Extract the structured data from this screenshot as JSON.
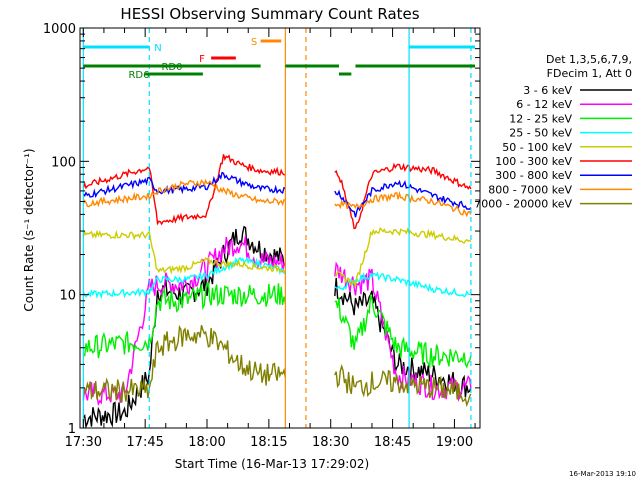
{
  "chart_data": {
    "type": "line",
    "title": "HESSI Observing Summary Count Rates",
    "xlabel": "Start Time (16-Mar-13 17:29:02)",
    "ylabel": "Count Rate (s⁻¹ detector⁻¹)",
    "y_scale": "log",
    "ylim": [
      1,
      1000
    ],
    "xlim": [
      "17:30",
      "19:05"
    ],
    "x_ticks": [
      "17:30",
      "17:45",
      "18:00",
      "18:15",
      "18:30",
      "18:45",
      "19:00"
    ],
    "y_ticks": [
      "1",
      "10",
      "100",
      "1000"
    ],
    "grid": false,
    "legend_position": "right",
    "legend_header": [
      "Det 1,3,5,6,7,9,",
      "FDecim 1, Att 0"
    ],
    "footer_date": "16-Mar-2013 19:10",
    "gap": [
      "18:19",
      "18:31"
    ],
    "series": [
      {
        "name": "3 - 6 keV",
        "color": "#000000",
        "x": [
          "17:30",
          "17:40",
          "17:46",
          "17:48",
          "17:55",
          "18:00",
          "18:04",
          "18:08",
          "18:13",
          "18:29",
          "18:32",
          "18:36",
          "18:40",
          "18:46",
          "18:55",
          "19:04"
        ],
        "y": [
          1.2,
          1.3,
          2.5,
          11,
          10,
          12,
          20,
          30,
          22,
          13,
          11,
          8,
          9,
          3,
          2.5,
          2
        ]
      },
      {
        "name": "6 - 12 keV",
        "color": "#ff00ff",
        "x": [
          "17:30",
          "17:40",
          "17:46",
          "17:48",
          "17:55",
          "18:00",
          "18:04",
          "18:08",
          "18:13",
          "18:29",
          "18:32",
          "18:36",
          "18:40",
          "18:46",
          "18:55",
          "19:04"
        ],
        "y": [
          1.8,
          1.8,
          11,
          12,
          12,
          16,
          22,
          25,
          18,
          16,
          15,
          12,
          13,
          2.5,
          2,
          2
        ]
      },
      {
        "name": "12 - 25 keV",
        "color": "#00ee00",
        "x": [
          "17:30",
          "17:46",
          "17:48",
          "17:55",
          "18:00",
          "18:04",
          "18:08",
          "18:13",
          "18:29",
          "18:32",
          "18:36",
          "18:40",
          "18:46",
          "18:55",
          "19:04"
        ],
        "y": [
          4,
          4.5,
          9,
          9,
          10,
          10,
          10,
          10,
          10,
          8,
          4,
          9,
          4,
          3.5,
          3.5
        ]
      },
      {
        "name": "25 - 50 keV",
        "color": "#00ffff",
        "x": [
          "17:30",
          "17:46",
          "17:48",
          "17:55",
          "18:00",
          "18:04",
          "18:08",
          "18:13",
          "18:29",
          "18:32",
          "18:36",
          "18:40",
          "18:46",
          "18:55",
          "19:04"
        ],
        "y": [
          10,
          10.5,
          13,
          13,
          14,
          16,
          18,
          17,
          12,
          11,
          13,
          14,
          13,
          11,
          10
        ]
      },
      {
        "name": "50 - 100 keV",
        "color": "#cccc00",
        "x": [
          "17:30",
          "17:46",
          "17:48",
          "17:55",
          "18:00",
          "18:04",
          "18:08",
          "18:13",
          "18:29",
          "18:32",
          "18:36",
          "18:40",
          "18:46",
          "18:55",
          "19:04"
        ],
        "y": [
          28,
          28,
          15,
          16,
          18,
          17,
          17,
          16,
          15,
          14,
          12,
          30,
          30,
          28,
          25
        ]
      },
      {
        "name": "100 - 300 keV",
        "color": "#ff0000",
        "x": [
          "17:30",
          "17:46",
          "17:48",
          "17:55",
          "18:00",
          "18:04",
          "18:08",
          "18:13",
          "18:29",
          "18:32",
          "18:36",
          "18:40",
          "18:46",
          "18:55",
          "19:04"
        ],
        "y": [
          65,
          90,
          35,
          38,
          40,
          110,
          95,
          85,
          80,
          80,
          30,
          80,
          92,
          85,
          62
        ]
      },
      {
        "name": "300 - 800 keV",
        "color": "#0000ff",
        "x": [
          "17:30",
          "17:46",
          "17:48",
          "17:55",
          "18:00",
          "18:04",
          "18:08",
          "18:13",
          "18:29",
          "18:32",
          "18:36",
          "18:40",
          "18:46",
          "18:55",
          "19:04"
        ],
        "y": [
          55,
          72,
          60,
          62,
          65,
          80,
          70,
          62,
          60,
          58,
          40,
          60,
          70,
          55,
          45
        ]
      },
      {
        "name": "800 - 7000 keV",
        "color": "#ff8800",
        "x": [
          "17:30",
          "17:46",
          "17:48",
          "17:55",
          "18:00",
          "18:04",
          "18:08",
          "18:13",
          "18:29",
          "18:32",
          "18:36",
          "18:40",
          "18:46",
          "18:55",
          "19:04"
        ],
        "y": [
          48,
          55,
          60,
          68,
          70,
          60,
          55,
          50,
          50,
          48,
          45,
          52,
          55,
          50,
          40
        ]
      },
      {
        "name": "7000 - 20000 keV",
        "color": "#808000",
        "x": [
          "17:30",
          "17:46",
          "17:48",
          "17:55",
          "18:00",
          "18:04",
          "18:08",
          "18:13",
          "18:29",
          "18:32",
          "18:36",
          "18:40",
          "18:46",
          "18:55",
          "19:04"
        ],
        "y": [
          1.9,
          1.9,
          4,
          5,
          5,
          4,
          3,
          2.5,
          2.5,
          2.5,
          2,
          2.2,
          2.2,
          2,
          1.8
        ]
      }
    ],
    "flags": [
      {
        "label": "N",
        "color": "#00e0ff",
        "segments": [
          [
            "17:30",
            "17:46"
          ],
          [
            "18:49",
            "19:05"
          ]
        ]
      },
      {
        "label": "S",
        "color": "#ff8800",
        "segments": [
          [
            "18:13",
            "18:18"
          ]
        ]
      },
      {
        "label": "F",
        "color": "#ff0000",
        "segments": [
          [
            "18:01",
            "18:07"
          ]
        ]
      },
      {
        "label": "RD0",
        "color": "#008000",
        "segments": [
          [
            "17:30",
            "18:00"
          ],
          [
            "18:00",
            "18:13"
          ],
          [
            "18:19",
            "18:32"
          ],
          [
            "18:36",
            "19:05"
          ]
        ]
      },
      {
        "label": "RD6",
        "color": "#008000",
        "segments": [
          [
            "17:45",
            "17:59"
          ],
          [
            "18:32",
            "18:35"
          ]
        ]
      }
    ],
    "vlines": [
      {
        "time": "17:30",
        "color": "#00e0ff",
        "style": "solid"
      },
      {
        "time": "17:46",
        "color": "#00e0ff",
        "style": "dashed"
      },
      {
        "time": "18:19",
        "color": "#ff8800",
        "style": "solid"
      },
      {
        "time": "18:24",
        "color": "#ff8800",
        "style": "dashed"
      },
      {
        "time": "18:49",
        "color": "#00e0ff",
        "style": "solid"
      },
      {
        "time": "19:04",
        "color": "#00e0ff",
        "style": "dashed"
      }
    ]
  }
}
